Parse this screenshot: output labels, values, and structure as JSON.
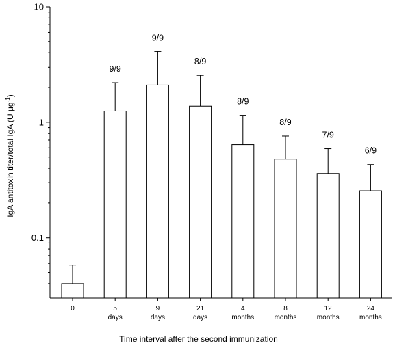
{
  "chart_data": {
    "type": "bar",
    "title": "",
    "xlabel": "Time interval after the second immunization",
    "ylabel": "IgA antitoxin titer/total IgA (U μg",
    "ylabel_superscript": "-1",
    "ylabel_suffix": ")",
    "yscale": "log",
    "ylim": [
      0.03,
      10
    ],
    "yticks": [
      {
        "value": 0.1,
        "label": "0.1"
      },
      {
        "value": 1,
        "label": "1"
      },
      {
        "value": 10,
        "label": "10"
      }
    ],
    "categories": [
      {
        "line1": "0",
        "line2": ""
      },
      {
        "line1": "5",
        "line2": "days"
      },
      {
        "line1": "9",
        "line2": "days"
      },
      {
        "line1": "21",
        "line2": "days"
      },
      {
        "line1": "4",
        "line2": "months"
      },
      {
        "line1": "8",
        "line2": "months"
      },
      {
        "line1": "12",
        "line2": "months"
      },
      {
        "line1": "24",
        "line2": "months"
      }
    ],
    "values": [
      0.04,
      1.25,
      2.1,
      1.38,
      0.64,
      0.48,
      0.36,
      0.255
    ],
    "error_upper": [
      0.058,
      2.2,
      4.1,
      2.55,
      1.15,
      0.76,
      0.59,
      0.43
    ],
    "data_labels": [
      "",
      "9/9",
      "9/9",
      "8/9",
      "8/9",
      "8/9",
      "7/9",
      "6/9"
    ],
    "bar_fill": "#ffffff",
    "bar_stroke": "#000000",
    "grid": false
  }
}
